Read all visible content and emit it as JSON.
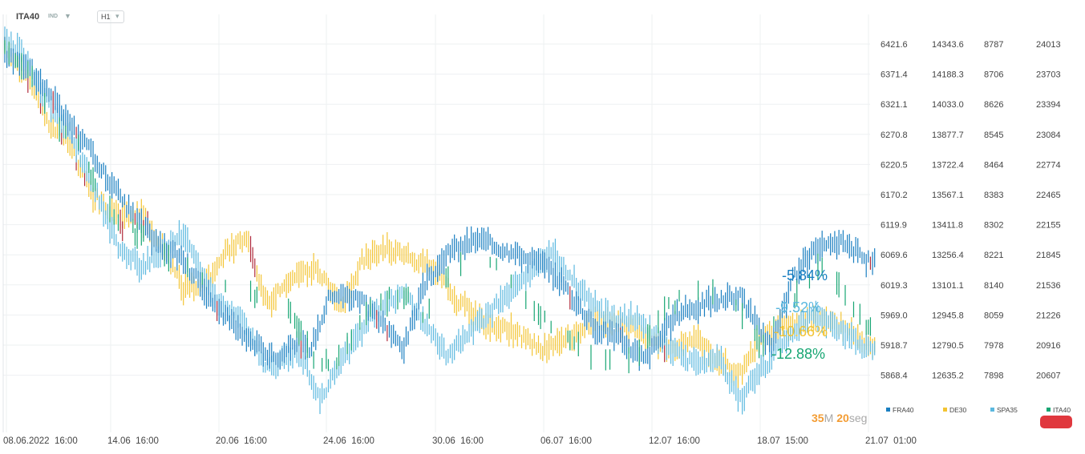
{
  "header": {
    "symbol": "ITA40",
    "instrument_type": "IND",
    "timeframe": "H1"
  },
  "countdown": {
    "minutes": "35",
    "minutes_unit": "M",
    "seconds": "20",
    "seconds_unit": "seg"
  },
  "colors": {
    "FRA40": "#1a7fc1",
    "DE30": "#f3c433",
    "SPA35": "#5bb8df",
    "ITA40": "#17a673",
    "down_bar": "#b02a3a",
    "countdown": "#f39c33",
    "countdown_unit": "#a8a8a8",
    "grid": "#eef0f2",
    "alert_badge": "#e0383e"
  },
  "chart_data": {
    "type": "bar",
    "title": "",
    "x_tick_labels": [
      "08.06.2022  16:00",
      "14.06  16:00",
      "20.06  16:00",
      "24.06  16:00",
      "30.06  16:00",
      "06.07  16:00",
      "12.07  16:00",
      "18.07  15:00",
      "21.07  01:00"
    ],
    "grid": true,
    "legend_placement": "bottom-right",
    "series": [
      {
        "name": "FRA40",
        "axis_ticks": [
          "6421.6",
          "6371.4",
          "6321.1",
          "6270.8",
          "6220.5",
          "6170.2",
          "6119.9",
          "6069.6",
          "6019.3",
          "5969.0",
          "5918.7",
          "5868.4"
        ],
        "change_label": "-5.84%",
        "anchors": [
          [
            0,
            6405
          ],
          [
            10,
            6390
          ],
          [
            25,
            6320
          ],
          [
            45,
            6220
          ],
          [
            60,
            6140
          ],
          [
            72,
            6090
          ],
          [
            85,
            6060
          ],
          [
            100,
            5985
          ],
          [
            115,
            5930
          ],
          [
            130,
            5895
          ],
          [
            140,
            5930
          ],
          [
            145,
            5905
          ],
          [
            155,
            6005
          ],
          [
            170,
            5995
          ],
          [
            180,
            5950
          ],
          [
            190,
            5915
          ],
          [
            200,
            6020
          ],
          [
            212,
            6075
          ],
          [
            225,
            6095
          ],
          [
            240,
            6075
          ],
          [
            255,
            6055
          ],
          [
            265,
            6025
          ],
          [
            280,
            5950
          ],
          [
            290,
            5935
          ],
          [
            305,
            5895
          ],
          [
            320,
            5970
          ],
          [
            335,
            5990
          ],
          [
            350,
            6000
          ],
          [
            365,
            5910
          ],
          [
            375,
            6030
          ],
          [
            385,
            6075
          ],
          [
            400,
            6090
          ],
          [
            410,
            6060
          ]
        ]
      },
      {
        "name": "DE30",
        "axis_ticks": [
          "14343.6",
          "14188.3",
          "14033.0",
          "13877.7",
          "13722.4",
          "13567.1",
          "13411.8",
          "13256.4",
          "13101.1",
          "12945.8",
          "12790.5",
          "12635.2"
        ],
        "change_label": "-10.66%",
        "anchors": [
          [
            0,
            14320
          ],
          [
            10,
            14200
          ],
          [
            20,
            13950
          ],
          [
            30,
            13850
          ],
          [
            42,
            13560
          ],
          [
            55,
            13450
          ],
          [
            65,
            13470
          ],
          [
            75,
            13300
          ],
          [
            85,
            13080
          ],
          [
            95,
            13120
          ],
          [
            105,
            13260
          ],
          [
            115,
            13350
          ],
          [
            125,
            13000
          ],
          [
            140,
            13180
          ],
          [
            150,
            13170
          ],
          [
            160,
            12980
          ],
          [
            170,
            13220
          ],
          [
            180,
            13300
          ],
          [
            195,
            13230
          ],
          [
            205,
            13170
          ],
          [
            215,
            13020
          ],
          [
            230,
            12880
          ],
          [
            240,
            12870
          ],
          [
            255,
            12770
          ],
          [
            265,
            12810
          ],
          [
            280,
            12910
          ],
          [
            290,
            12900
          ],
          [
            305,
            12850
          ],
          [
            315,
            12760
          ],
          [
            330,
            12820
          ],
          [
            340,
            12700
          ],
          [
            350,
            12640
          ],
          [
            360,
            12830
          ],
          [
            372,
            12900
          ],
          [
            385,
            12930
          ],
          [
            400,
            12880
          ],
          [
            410,
            12800
          ]
        ]
      },
      {
        "name": "SPA35",
        "axis_ticks": [
          "8787",
          "8706",
          "8626",
          "8545",
          "8464",
          "8383",
          "8302",
          "8221",
          "8140",
          "8059",
          "7978",
          "7898"
        ],
        "change_label": "-9.52%",
        "anchors": [
          [
            0,
            8790
          ],
          [
            8,
            8770
          ],
          [
            18,
            8650
          ],
          [
            30,
            8560
          ],
          [
            42,
            8410
          ],
          [
            55,
            8230
          ],
          [
            65,
            8190
          ],
          [
            75,
            8230
          ],
          [
            85,
            8280
          ],
          [
            100,
            8100
          ],
          [
            112,
            8050
          ],
          [
            125,
            7920
          ],
          [
            140,
            7960
          ],
          [
            150,
            7830
          ],
          [
            160,
            7930
          ],
          [
            175,
            8060
          ],
          [
            190,
            8120
          ],
          [
            200,
            8040
          ],
          [
            210,
            7950
          ],
          [
            220,
            8000
          ],
          [
            235,
            8090
          ],
          [
            250,
            8170
          ],
          [
            260,
            8230
          ],
          [
            275,
            8120
          ],
          [
            285,
            8060
          ],
          [
            300,
            8050
          ],
          [
            315,
            7980
          ],
          [
            330,
            7920
          ],
          [
            340,
            7950
          ],
          [
            350,
            7830
          ],
          [
            360,
            7910
          ],
          [
            372,
            8000
          ],
          [
            385,
            8060
          ],
          [
            398,
            8020
          ],
          [
            410,
            7970
          ]
        ]
      },
      {
        "name": "ITA40",
        "axis_ticks": [
          "24013",
          "23703",
          "23394",
          "23084",
          "22774",
          "22465",
          "22155",
          "21845",
          "21536",
          "21226",
          "20916",
          "20607"
        ],
        "change_label": "-12.88%",
        "anchors": [
          [
            0,
            23930
          ],
          [
            10,
            23780
          ],
          [
            22,
            23250
          ],
          [
            35,
            22980
          ],
          [
            45,
            22430
          ],
          [
            55,
            22150
          ],
          [
            65,
            22050
          ],
          [
            75,
            21900
          ],
          [
            85,
            21750
          ],
          [
            95,
            21620
          ],
          [
            110,
            21550
          ],
          [
            125,
            21300
          ],
          [
            135,
            21250
          ],
          [
            150,
            20700
          ],
          [
            160,
            20800
          ],
          [
            175,
            21350
          ],
          [
            190,
            21450
          ],
          [
            200,
            21200
          ],
          [
            212,
            21700
          ],
          [
            225,
            21950
          ],
          [
            240,
            21550
          ],
          [
            250,
            21300
          ],
          [
            262,
            21100
          ],
          [
            275,
            20850
          ],
          [
            288,
            20750
          ],
          [
            300,
            20750
          ],
          [
            315,
            21300
          ],
          [
            330,
            21500
          ],
          [
            345,
            21450
          ],
          [
            360,
            20900
          ],
          [
            372,
            21350
          ],
          [
            380,
            21500
          ],
          [
            390,
            21800
          ],
          [
            400,
            21400
          ],
          [
            410,
            21100
          ]
        ]
      }
    ]
  }
}
